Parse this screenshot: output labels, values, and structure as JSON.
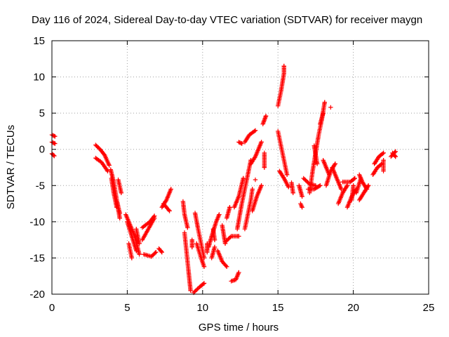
{
  "chart_data": {
    "type": "scatter",
    "title": "Day 116 of 2024, Sidereal Day-to-day VTEC variation (SDTVAR) for receiver maygn",
    "xlabel": "GPS time / hours",
    "ylabel": "SDTVAR / TECUs",
    "xlim": [
      0,
      25
    ],
    "ylim": [
      -20,
      15
    ],
    "xticks": [
      0,
      5,
      10,
      15,
      20,
      25
    ],
    "yticks": [
      -20,
      -15,
      -10,
      -5,
      0,
      5,
      10,
      15
    ],
    "xtick_labels": [
      "0",
      "5",
      "10",
      "15",
      "20",
      "25"
    ],
    "ytick_labels": [
      "-20",
      "-15",
      "-10",
      "-5",
      "0",
      "5",
      "10",
      "15"
    ],
    "grid": true,
    "marker": "+",
    "color": "#ff0000",
    "series": [
      {
        "name": "SDTVAR",
        "segments": [
          [
            [
              0.0,
              2.0
            ],
            [
              0.2,
              1.8
            ]
          ],
          [
            [
              0.0,
              1.0
            ],
            [
              0.2,
              0.8
            ]
          ],
          [
            [
              0.0,
              -0.6
            ],
            [
              0.15,
              -0.9
            ]
          ],
          [
            [
              2.9,
              0.6
            ],
            [
              3.2,
              0.0
            ],
            [
              3.5,
              -0.8
            ],
            [
              3.8,
              -2.2
            ]
          ],
          [
            [
              2.9,
              -1.2
            ],
            [
              3.3,
              -1.8
            ],
            [
              3.7,
              -3.0
            ]
          ],
          [
            [
              3.9,
              -2.8
            ],
            [
              4.1,
              -4.5
            ],
            [
              4.3,
              -7.0
            ],
            [
              4.5,
              -9.5
            ]
          ],
          [
            [
              3.95,
              -4.0
            ],
            [
              4.1,
              -6.0
            ],
            [
              4.3,
              -8.0
            ]
          ],
          [
            [
              4.4,
              -4.2
            ],
            [
              4.6,
              -6.0
            ]
          ],
          [
            [
              4.3,
              -7.0
            ],
            [
              4.5,
              -8.8
            ]
          ],
          [
            [
              4.9,
              -9.0
            ],
            [
              5.2,
              -10.5
            ],
            [
              5.5,
              -12.0
            ],
            [
              5.8,
              -14.5
            ]
          ],
          [
            [
              5.0,
              -10.0
            ],
            [
              5.3,
              -12.0
            ],
            [
              5.6,
              -14.0
            ]
          ],
          [
            [
              5.1,
              -13.0
            ],
            [
              5.3,
              -15.0
            ]
          ],
          [
            [
              5.6,
              -11.0
            ],
            [
              5.8,
              -13.0
            ]
          ],
          [
            [
              6.0,
              -10.8
            ],
            [
              6.5,
              -10.0
            ],
            [
              6.8,
              -9.2
            ]
          ],
          [
            [
              6.0,
              -12.5
            ],
            [
              6.4,
              -11.0
            ],
            [
              6.8,
              -9.5
            ]
          ],
          [
            [
              6.1,
              -14.5
            ],
            [
              6.6,
              -14.8
            ],
            [
              6.9,
              -14.2
            ]
          ],
          [
            [
              7.1,
              -13.7
            ],
            [
              7.3,
              -14.2
            ]
          ],
          [
            [
              7.3,
              -8.0
            ],
            [
              7.6,
              -7.0
            ],
            [
              7.9,
              -5.5
            ]
          ],
          [
            [
              7.4,
              -7.5
            ],
            [
              7.8,
              -8.5
            ]
          ],
          [
            [
              8.7,
              -7.2
            ],
            [
              8.8,
              -9.0
            ],
            [
              9.0,
              -10.8
            ]
          ],
          [
            [
              8.8,
              -11.5
            ],
            [
              8.9,
              -13.5
            ],
            [
              9.0,
              -15.5
            ],
            [
              9.1,
              -17.5
            ],
            [
              9.2,
              -19.5
            ]
          ],
          [
            [
              9.3,
              -12.5
            ],
            [
              9.3,
              -13.5
            ]
          ],
          [
            [
              9.5,
              -8.8
            ],
            [
              9.7,
              -11.0
            ],
            [
              9.9,
              -13.0
            ],
            [
              10.1,
              -15.0
            ]
          ],
          [
            [
              9.6,
              -13.0
            ],
            [
              9.9,
              -15.0
            ],
            [
              10.1,
              -16.2
            ]
          ],
          [
            [
              9.4,
              -19.8
            ],
            [
              9.8,
              -19.0
            ],
            [
              10.1,
              -18.5
            ]
          ],
          [
            [
              10.3,
              -13.0
            ],
            [
              10.3,
              -14.2
            ]
          ],
          [
            [
              10.7,
              -11.0
            ],
            [
              10.8,
              -12.5
            ]
          ],
          [
            [
              10.4,
              -13.5
            ],
            [
              10.6,
              -12.0
            ],
            [
              10.9,
              -10.0
            ],
            [
              11.1,
              -9.0
            ]
          ],
          [
            [
              10.6,
              -15.0
            ],
            [
              10.8,
              -13.5
            ]
          ],
          [
            [
              11.0,
              -14.0
            ],
            [
              11.3,
              -15.5
            ],
            [
              11.6,
              -16.2
            ]
          ],
          [
            [
              11.3,
              -10.5
            ],
            [
              11.5,
              -13.0
            ]
          ],
          [
            [
              11.6,
              -9.5
            ],
            [
              11.8,
              -8.0
            ]
          ],
          [
            [
              11.5,
              -12.8
            ],
            [
              11.9,
              -12.0
            ],
            [
              12.4,
              -12.0
            ]
          ],
          [
            [
              12.1,
              -8.0
            ],
            [
              12.4,
              -6.5
            ],
            [
              12.7,
              -4.0
            ]
          ],
          [
            [
              11.9,
              -18.2
            ],
            [
              12.2,
              -18.0
            ],
            [
              12.4,
              -17.0
            ]
          ],
          [
            [
              12.3,
              -11.0
            ],
            [
              12.6,
              -7.5
            ],
            [
              12.9,
              -4.5
            ],
            [
              13.2,
              -1.5
            ]
          ],
          [
            [
              12.4,
              1.0
            ],
            [
              12.6,
              0.8
            ]
          ],
          [
            [
              12.8,
              -11.0
            ],
            [
              13.0,
              -9.0
            ],
            [
              13.2,
              -7.0
            ],
            [
              13.3,
              -5.5
            ]
          ],
          [
            [
              12.8,
              1.0
            ],
            [
              13.1,
              2.0
            ],
            [
              13.5,
              2.6
            ]
          ],
          [
            [
              13.3,
              -8.5
            ],
            [
              13.6,
              -6.5
            ],
            [
              13.9,
              -5.0
            ]
          ],
          [
            [
              13.2,
              -2.0
            ],
            [
              13.5,
              -1.0
            ],
            [
              13.9,
              1.0
            ]
          ],
          [
            [
              13.5,
              -4.2
            ]
          ],
          [
            [
              14.0,
              3.5
            ],
            [
              14.2,
              4.6
            ]
          ],
          [
            [
              14.1,
              -0.5
            ],
            [
              14.1,
              -2.5
            ]
          ],
          [
            [
              15.0,
              6.0
            ],
            [
              15.2,
              8.0
            ],
            [
              15.4,
              10.5
            ],
            [
              15.4,
              11.5
            ]
          ],
          [
            [
              15.0,
              2.5
            ],
            [
              15.2,
              0.5
            ],
            [
              15.4,
              -1.5
            ],
            [
              15.6,
              -3.5
            ]
          ],
          [
            [
              15.1,
              -3.0
            ],
            [
              15.4,
              -4.0
            ],
            [
              15.7,
              -5.2
            ]
          ],
          [
            [
              15.9,
              -4.6
            ],
            [
              16.0,
              -6.0
            ]
          ],
          [
            [
              16.4,
              -5.0
            ],
            [
              16.6,
              -6.5
            ]
          ],
          [
            [
              16.5,
              -7.5
            ],
            [
              16.6,
              -8.0
            ]
          ],
          [
            [
              16.7,
              -4.0
            ],
            [
              17.1,
              -4.8
            ],
            [
              17.5,
              -5.0
            ]
          ],
          [
            [
              17.0,
              -5.5
            ],
            [
              17.4,
              -5.5
            ],
            [
              17.8,
              -5.0
            ]
          ],
          [
            [
              17.1,
              -6.0
            ],
            [
              17.3,
              -3.0
            ],
            [
              17.5,
              -0.5
            ],
            [
              17.7,
              2.0
            ],
            [
              17.9,
              4.0
            ],
            [
              18.1,
              6.5
            ]
          ],
          [
            [
              17.4,
              0.5
            ],
            [
              17.6,
              -2.0
            ]
          ],
          [
            [
              17.8,
              3.5
            ],
            [
              18.0,
              5.0
            ]
          ],
          [
            [
              18.5,
              5.8
            ]
          ],
          [
            [
              18.0,
              -1.5
            ],
            [
              18.2,
              -2.5
            ],
            [
              18.4,
              -3.5
            ]
          ],
          [
            [
              18.2,
              -5.0
            ],
            [
              18.5,
              -3.0
            ],
            [
              18.8,
              -2.0
            ]
          ],
          [
            [
              18.6,
              -2.5
            ],
            [
              18.9,
              -4.0
            ],
            [
              19.2,
              -5.5
            ]
          ],
          [
            [
              19.0,
              -7.5
            ],
            [
              19.3,
              -6.0
            ],
            [
              19.6,
              -5.0
            ]
          ],
          [
            [
              19.3,
              -4.5
            ],
            [
              19.8,
              -4.5
            ],
            [
              20.1,
              -4.0
            ]
          ],
          [
            [
              19.6,
              -8.0
            ],
            [
              19.9,
              -6.5
            ],
            [
              20.2,
              -5.5
            ]
          ],
          [
            [
              19.9,
              -7.0
            ],
            [
              20.0,
              -5.0
            ]
          ],
          [
            [
              20.4,
              -7.0
            ],
            [
              20.7,
              -6.0
            ],
            [
              21.0,
              -5.0
            ]
          ],
          [
            [
              20.4,
              -3.5
            ],
            [
              20.6,
              -4.5
            ],
            [
              20.9,
              -5.5
            ]
          ],
          [
            [
              20.2,
              -6.0
            ],
            [
              20.5,
              -4.0
            ]
          ],
          [
            [
              21.3,
              -3.5
            ],
            [
              21.6,
              -2.5
            ],
            [
              21.9,
              -2.0
            ]
          ],
          [
            [
              21.4,
              -2.0
            ],
            [
              21.7,
              -1.0
            ],
            [
              22.0,
              -0.5
            ]
          ],
          [
            [
              22.0,
              -3.0
            ],
            [
              22.0,
              -1.5
            ]
          ],
          [
            [
              22.5,
              -1.0
            ],
            [
              22.8,
              -0.3
            ]
          ],
          [
            [
              22.6,
              -0.5
            ],
            [
              22.8,
              -1.0
            ]
          ]
        ]
      }
    ]
  }
}
